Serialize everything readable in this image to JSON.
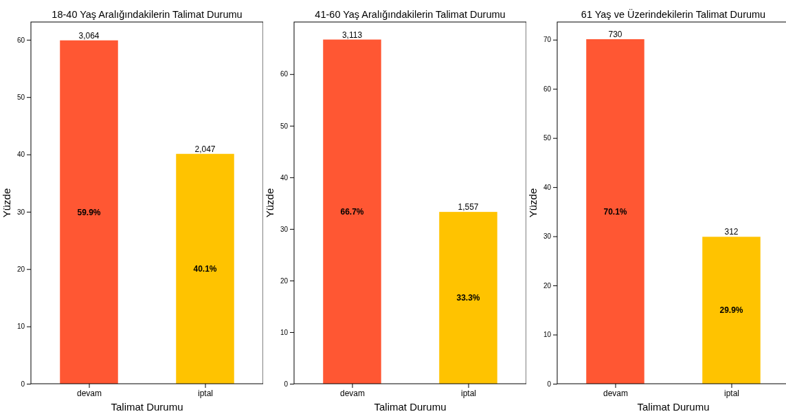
{
  "chart_data": [
    {
      "type": "bar",
      "title": "18-40 Yaş Aralığındakilerin Talimat Durumu",
      "xlabel": "Talimat Durumu",
      "ylabel": "Yüzde",
      "categories": [
        "devam",
        "iptal"
      ],
      "values": [
        59.9,
        40.1
      ],
      "colors": [
        "#ff5733",
        "#ffc300"
      ],
      "value_labels": [
        "59.9%",
        "40.1%"
      ],
      "ylim": [
        0,
        63.1
      ],
      "yticks": [
        0,
        10,
        20,
        30,
        40,
        50,
        60
      ],
      "annotations": [
        {
          "text": "3,064",
          "x": "devam",
          "y": 59.9
        },
        {
          "text": "2,047",
          "x": "iptal",
          "y": 40.1
        }
      ]
    },
    {
      "type": "bar",
      "title": "41-60 Yaş Aralığındakilerin Talimat Durumu",
      "xlabel": "Talimat Durumu",
      "ylabel": "Yüzde",
      "categories": [
        "devam",
        "iptal"
      ],
      "values": [
        66.7,
        33.3
      ],
      "colors": [
        "#ff5733",
        "#ffc300"
      ],
      "value_labels": [
        "66.7%",
        "33.3%"
      ],
      "ylim": [
        0,
        70.1
      ],
      "yticks": [
        0,
        10,
        20,
        30,
        40,
        50,
        60
      ],
      "annotations": [
        {
          "text": "3,113",
          "x": "devam",
          "y": 66.7
        },
        {
          "text": "1,557",
          "x": "iptal",
          "y": 33.3
        }
      ]
    },
    {
      "type": "bar",
      "title": "61 Yaş ve Üzerindekilerin Talimat Durumu",
      "xlabel": "Talimat Durumu",
      "ylabel": "Yüzde",
      "categories": [
        "devam",
        "iptal"
      ],
      "values": [
        70.1,
        29.9
      ],
      "colors": [
        "#ff5733",
        "#ffc300"
      ],
      "value_labels": [
        "70.1%",
        "29.9%"
      ],
      "ylim": [
        0,
        73.6
      ],
      "yticks": [
        0,
        10,
        20,
        30,
        40,
        50,
        60,
        70
      ],
      "annotations": [
        {
          "text": "730",
          "x": "devam",
          "y": 70.1
        },
        {
          "text": "312",
          "x": "iptal",
          "y": 29.9
        }
      ]
    }
  ]
}
